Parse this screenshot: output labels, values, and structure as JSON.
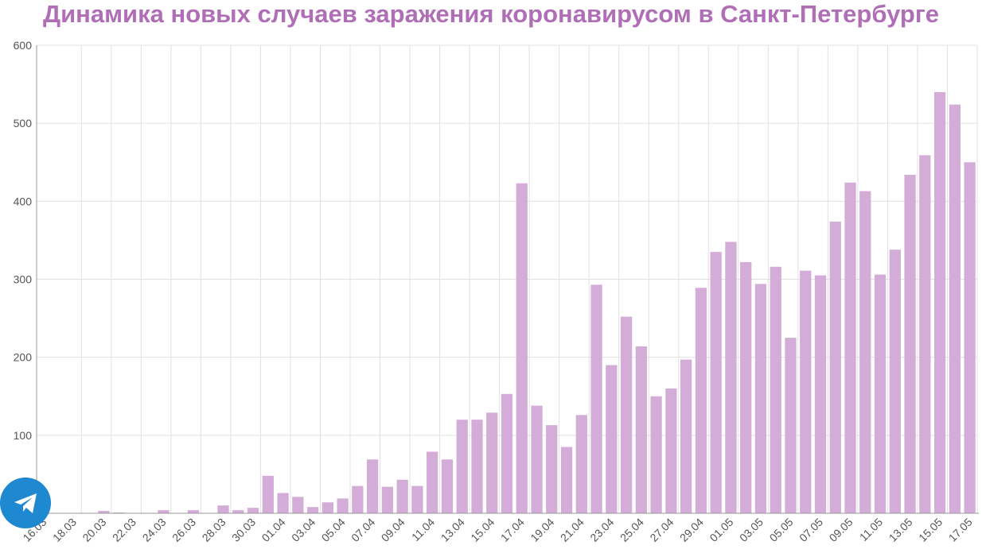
{
  "chart_data": {
    "type": "bar",
    "title": "Динамика новых случаев заражения коронавирусом в Санкт-Петербурге",
    "categories": [
      "16.03",
      null,
      "18.03",
      null,
      "20.03",
      null,
      "22.03",
      null,
      "24.03",
      null,
      "26.03",
      null,
      "28.03",
      null,
      "30.03",
      null,
      "01.04",
      null,
      "03.04",
      null,
      "05.04",
      null,
      "07.04",
      null,
      "09.04",
      null,
      "11.04",
      null,
      "13.04",
      null,
      "15.04",
      null,
      "17.04",
      null,
      "19.04",
      null,
      "21.04",
      null,
      "23.04",
      null,
      "25.04",
      null,
      "27.04",
      null,
      "29.04",
      null,
      "01.05",
      null,
      "03.05",
      null,
      "05.05",
      null,
      "07.05",
      null,
      "09.05",
      null,
      "11.05",
      null,
      "13.05",
      null,
      "15.05",
      null,
      "17.05"
    ],
    "values": [
      0,
      0,
      0,
      0,
      3,
      1,
      0,
      0,
      4,
      0,
      4,
      0,
      10,
      4,
      7,
      48,
      26,
      21,
      8,
      14,
      19,
      35,
      69,
      34,
      43,
      35,
      79,
      69,
      120,
      120,
      129,
      153,
      423,
      138,
      113,
      85,
      126,
      293,
      190,
      252,
      214,
      150,
      160,
      197,
      289,
      335,
      348,
      322,
      294,
      316,
      225,
      311,
      305,
      374,
      424,
      413,
      306,
      338,
      434,
      459,
      540,
      524,
      450
    ],
    "color": "#d4acd8",
    "ylim": [
      0,
      600
    ],
    "yticks": [
      100,
      200,
      300,
      400,
      500,
      600
    ],
    "grid": true
  }
}
